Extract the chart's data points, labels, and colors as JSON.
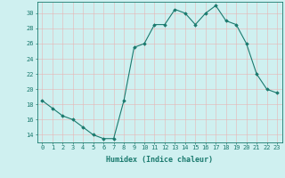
{
  "x": [
    0,
    1,
    2,
    3,
    4,
    5,
    6,
    7,
    8,
    9,
    10,
    11,
    12,
    13,
    14,
    15,
    16,
    17,
    18,
    19,
    20,
    21,
    22,
    23
  ],
  "y": [
    18.5,
    17.5,
    16.5,
    16,
    15,
    14,
    13.5,
    13.5,
    18.5,
    25.5,
    26,
    28.5,
    28.5,
    30.5,
    30,
    28.5,
    30,
    31,
    29,
    28.5,
    26,
    22,
    20,
    19.5
  ],
  "title": "",
  "xlabel": "Humidex (Indice chaleur)",
  "ylabel": "",
  "xlim": [
    -0.5,
    23.5
  ],
  "ylim": [
    13,
    31.5
  ],
  "yticks": [
    14,
    16,
    18,
    20,
    22,
    24,
    26,
    28,
    30
  ],
  "xticks": [
    0,
    1,
    2,
    3,
    4,
    5,
    6,
    7,
    8,
    9,
    10,
    11,
    12,
    13,
    14,
    15,
    16,
    17,
    18,
    19,
    20,
    21,
    22,
    23
  ],
  "line_color": "#1a7a6e",
  "marker": "D",
  "marker_size": 1.8,
  "bg_color": "#cff0f0",
  "grid_color": "#e8b4b4",
  "axis_color": "#1a7a6e",
  "tick_fontsize": 5.0,
  "xlabel_fontsize": 6.0
}
